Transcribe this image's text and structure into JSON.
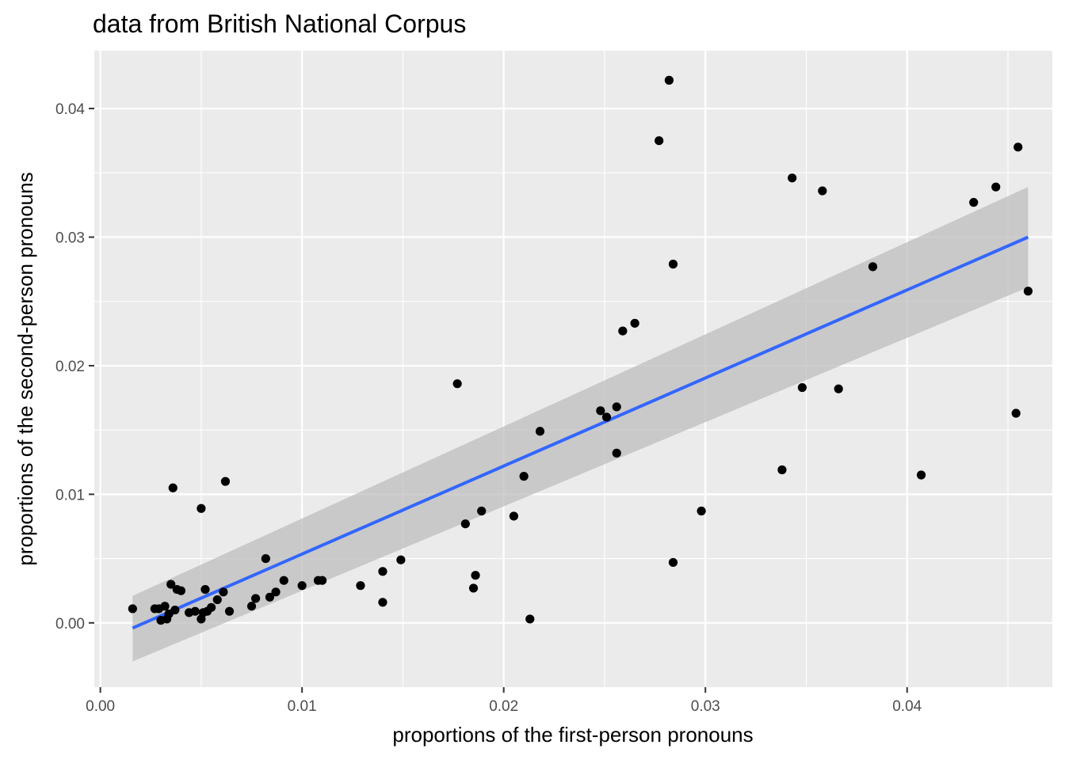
{
  "chart_data": {
    "type": "scatter",
    "title": "data from British National Corpus",
    "xlabel": "proportions of the first-person pronouns",
    "ylabel": "proportions of the second-person pronouns",
    "xlim": [
      -0.0003,
      0.0472
    ],
    "ylim": [
      -0.005,
      0.0445
    ],
    "x_ticks": [
      0.0,
      0.01,
      0.02,
      0.03,
      0.04
    ],
    "x_tick_labels": [
      "0.00",
      "0.01",
      "0.02",
      "0.03",
      "0.04"
    ],
    "y_ticks": [
      0.0,
      0.01,
      0.02,
      0.03,
      0.04
    ],
    "y_tick_labels": [
      "0.00",
      "0.01",
      "0.02",
      "0.03",
      "0.04"
    ],
    "grid": true,
    "colors": {
      "panel": "#ebebeb",
      "points": "#000000",
      "fit_line": "#3366ff",
      "ribbon": "#bdbdbd"
    },
    "points": [
      [
        0.0016,
        0.0011
      ],
      [
        0.0027,
        0.0011
      ],
      [
        0.0029,
        0.0011
      ],
      [
        0.003,
        0.0002
      ],
      [
        0.0032,
        0.0013
      ],
      [
        0.0033,
        0.0003
      ],
      [
        0.0034,
        0.0007
      ],
      [
        0.0035,
        0.003
      ],
      [
        0.0036,
        0.0105
      ],
      [
        0.0037,
        0.001
      ],
      [
        0.0038,
        0.0026
      ],
      [
        0.004,
        0.0025
      ],
      [
        0.0044,
        0.0008
      ],
      [
        0.0047,
        0.0009
      ],
      [
        0.005,
        0.0003
      ],
      [
        0.005,
        0.0089
      ],
      [
        0.0051,
        0.0008
      ],
      [
        0.0052,
        0.0026
      ],
      [
        0.0053,
        0.0009
      ],
      [
        0.0055,
        0.0012
      ],
      [
        0.0058,
        0.0018
      ],
      [
        0.0061,
        0.0024
      ],
      [
        0.0062,
        0.011
      ],
      [
        0.0064,
        0.0009
      ],
      [
        0.0075,
        0.0013
      ],
      [
        0.0077,
        0.0019
      ],
      [
        0.0082,
        0.005
      ],
      [
        0.0084,
        0.002
      ],
      [
        0.0087,
        0.0024
      ],
      [
        0.0091,
        0.0033
      ],
      [
        0.01,
        0.0029
      ],
      [
        0.0108,
        0.0033
      ],
      [
        0.011,
        0.0033
      ],
      [
        0.0129,
        0.0029
      ],
      [
        0.014,
        0.0016
      ],
      [
        0.014,
        0.004
      ],
      [
        0.0149,
        0.0049
      ],
      [
        0.0177,
        0.0186
      ],
      [
        0.0181,
        0.0077
      ],
      [
        0.0185,
        0.0027
      ],
      [
        0.0186,
        0.0037
      ],
      [
        0.0189,
        0.0087
      ],
      [
        0.0205,
        0.0083
      ],
      [
        0.021,
        0.0114
      ],
      [
        0.0213,
        0.0003
      ],
      [
        0.0218,
        0.0149
      ],
      [
        0.0248,
        0.0165
      ],
      [
        0.0251,
        0.016
      ],
      [
        0.0256,
        0.0168
      ],
      [
        0.0256,
        0.0132
      ],
      [
        0.0259,
        0.0227
      ],
      [
        0.0265,
        0.0233
      ],
      [
        0.0277,
        0.0375
      ],
      [
        0.0282,
        0.0422
      ],
      [
        0.0284,
        0.0279
      ],
      [
        0.0284,
        0.0047
      ],
      [
        0.0298,
        0.0087
      ],
      [
        0.0338,
        0.0119
      ],
      [
        0.0343,
        0.0346
      ],
      [
        0.0348,
        0.0183
      ],
      [
        0.0358,
        0.0336
      ],
      [
        0.0366,
        0.0182
      ],
      [
        0.0383,
        0.0277
      ],
      [
        0.0407,
        0.0115
      ],
      [
        0.0433,
        0.0327
      ],
      [
        0.0444,
        0.0339
      ],
      [
        0.0454,
        0.0163
      ],
      [
        0.0455,
        0.037
      ],
      [
        0.046,
        0.0258
      ]
    ],
    "fit": {
      "method": "linear",
      "x_range": [
        0.0016,
        0.046
      ],
      "y_range": [
        -0.0004,
        0.03
      ],
      "ci_lower": [
        -0.003,
        0.0261
      ],
      "ci_upper": [
        0.0021,
        0.0339
      ]
    }
  }
}
